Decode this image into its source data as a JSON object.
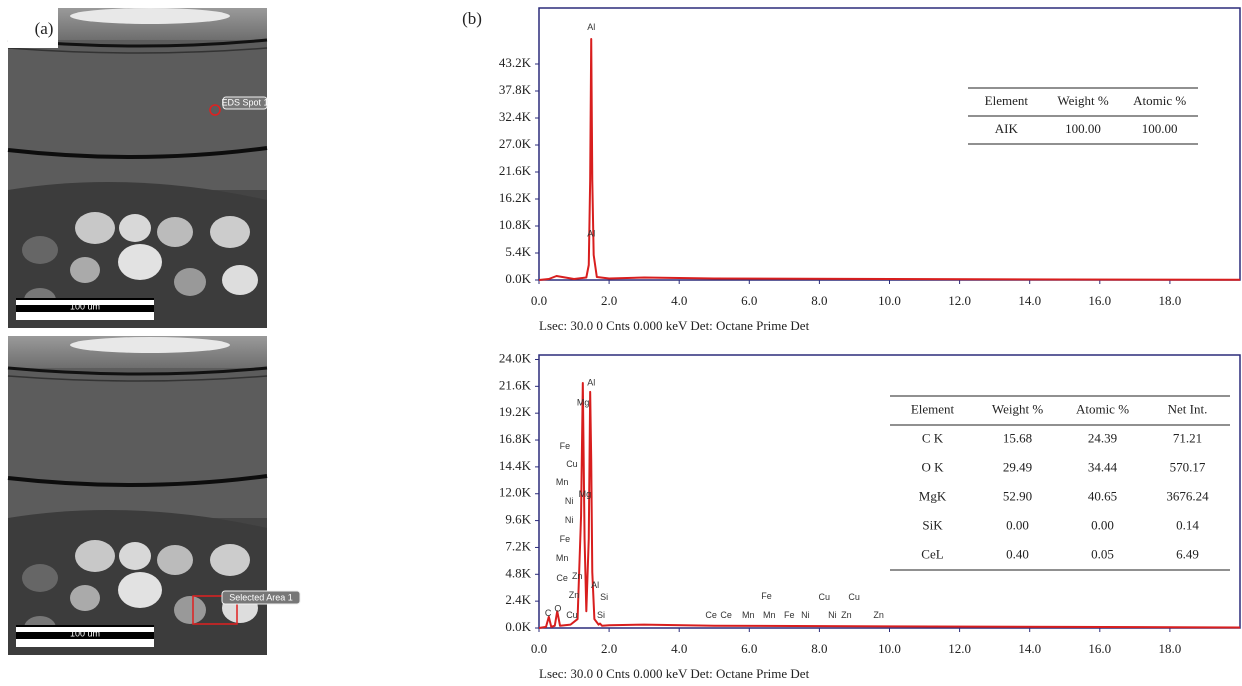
{
  "panel_labels": {
    "a": "(a)",
    "b": "(b)"
  },
  "images": [
    {
      "scale_bar": "100 um",
      "annotation": "EDS Spot 1"
    },
    {
      "scale_bar": "100 um",
      "annotation": "Selected Area 1"
    }
  ],
  "chart_data": [
    {
      "type": "line",
      "caption": "Lsec: 30.0 0 Cnts 0.000 keV Det: Octane Prime Det",
      "xlim": [
        0,
        20
      ],
      "ylim": [
        0,
        54400
      ],
      "xticks": [
        {
          "value": 0,
          "label": "0.0"
        },
        {
          "value": 2,
          "label": "2.0"
        },
        {
          "value": 4,
          "label": "4.0"
        },
        {
          "value": 6,
          "label": "6.0"
        },
        {
          "value": 8,
          "label": "8.0"
        },
        {
          "value": 10,
          "label": "10.0"
        },
        {
          "value": 12,
          "label": "12.0"
        },
        {
          "value": 14,
          "label": "14.0"
        },
        {
          "value": 16,
          "label": "16.0"
        },
        {
          "value": 18,
          "label": "18.0"
        }
      ],
      "yticks": [
        {
          "value": 0,
          "label": "0.0K"
        },
        {
          "value": 5400,
          "label": "5.4K"
        },
        {
          "value": 10800,
          "label": "10.8K"
        },
        {
          "value": 16200,
          "label": "16.2K"
        },
        {
          "value": 21600,
          "label": "21.6K"
        },
        {
          "value": 27000,
          "label": "27.0K"
        },
        {
          "value": 32400,
          "label": "32.4K"
        },
        {
          "value": 37800,
          "label": "37.8K"
        },
        {
          "value": 43200,
          "label": "43.2K"
        }
      ],
      "series": [
        {
          "color": "#d81e1e",
          "x": [
            0,
            0.28,
            0.5,
            1.0,
            1.35,
            1.42,
            1.46,
            1.49,
            1.52,
            1.56,
            1.65,
            2.0,
            3.0,
            5.0,
            10,
            15,
            20
          ],
          "values": [
            0,
            200,
            800,
            200,
            500,
            3000,
            20000,
            48200,
            20000,
            5000,
            600,
            300,
            500,
            300,
            200,
            100,
            50
          ]
        }
      ],
      "annotations": [
        {
          "text": "Al",
          "x": 1.49,
          "y": 50500
        },
        {
          "text": "Al",
          "x": 1.49,
          "y": 9200
        }
      ],
      "table": {
        "columns": [
          "Element",
          "Weight %",
          "Atomic %"
        ],
        "rows": [
          [
            "AIK",
            "100.00",
            "100.00"
          ]
        ]
      }
    },
    {
      "type": "line",
      "caption": "Lsec: 30.0 0 Cnts 0.000 keV Det: Octane Prime Det",
      "xlim": [
        0,
        20
      ],
      "ylim": [
        0,
        24400
      ],
      "xticks": [
        {
          "value": 0,
          "label": "0.0"
        },
        {
          "value": 2,
          "label": "2.0"
        },
        {
          "value": 4,
          "label": "4.0"
        },
        {
          "value": 6,
          "label": "6.0"
        },
        {
          "value": 8,
          "label": "8.0"
        },
        {
          "value": 10,
          "label": "10.0"
        },
        {
          "value": 12,
          "label": "12.0"
        },
        {
          "value": 14,
          "label": "14.0"
        },
        {
          "value": 16,
          "label": "16.0"
        },
        {
          "value": 18,
          "label": "18.0"
        }
      ],
      "yticks": [
        {
          "value": 0,
          "label": "0.0K"
        },
        {
          "value": 2400,
          "label": "2.4K"
        },
        {
          "value": 4800,
          "label": "4.8K"
        },
        {
          "value": 7200,
          "label": "7.2K"
        },
        {
          "value": 9600,
          "label": "9.6K"
        },
        {
          "value": 12000,
          "label": "12.0K"
        },
        {
          "value": 14400,
          "label": "14.4K"
        },
        {
          "value": 16800,
          "label": "16.8K"
        },
        {
          "value": 19200,
          "label": "19.2K"
        },
        {
          "value": 21600,
          "label": "21.6K"
        },
        {
          "value": 24000,
          "label": "24.0K"
        }
      ],
      "series": [
        {
          "color": "#d81e1e",
          "x": [
            0,
            0.2,
            0.28,
            0.35,
            0.45,
            0.52,
            0.6,
            0.9,
            1.1,
            1.2,
            1.25,
            1.3,
            1.35,
            1.42,
            1.46,
            1.49,
            1.52,
            1.58,
            1.7,
            1.74,
            1.8,
            2.0,
            3,
            5,
            10,
            15,
            20
          ],
          "values": [
            0,
            100,
            1000,
            100,
            200,
            1500,
            200,
            300,
            800,
            10000,
            21900,
            8000,
            1500,
            8000,
            21100,
            15000,
            5000,
            800,
            300,
            400,
            200,
            250,
            300,
            200,
            150,
            100,
            50
          ]
        }
      ],
      "annotations": [
        {
          "text": "Al",
          "x": 1.49,
          "y": 21900
        },
        {
          "text": "Mg",
          "x": 1.26,
          "y": 20100
        },
        {
          "text": "Fe",
          "x": 0.74,
          "y": 16200
        },
        {
          "text": "Cu",
          "x": 0.94,
          "y": 14600
        },
        {
          "text": "Mn",
          "x": 0.66,
          "y": 13000
        },
        {
          "text": "Ni",
          "x": 0.86,
          "y": 11300
        },
        {
          "text": "Mg",
          "x": 1.31,
          "y": 11900
        },
        {
          "text": "Ni",
          "x": 0.86,
          "y": 9600
        },
        {
          "text": "Fe",
          "x": 0.74,
          "y": 7900
        },
        {
          "text": "Mn",
          "x": 0.66,
          "y": 6200
        },
        {
          "text": "Ce",
          "x": 0.66,
          "y": 4400
        },
        {
          "text": "Zn",
          "x": 1.09,
          "y": 4600
        },
        {
          "text": "Zn",
          "x": 1.0,
          "y": 2900
        },
        {
          "text": "Al",
          "x": 1.6,
          "y": 3800
        },
        {
          "text": "Si",
          "x": 1.86,
          "y": 2700
        },
        {
          "text": "C",
          "x": 0.26,
          "y": 1300
        },
        {
          "text": "O",
          "x": 0.54,
          "y": 1700
        },
        {
          "text": "Cu",
          "x": 0.94,
          "y": 1100
        },
        {
          "text": "Si",
          "x": 1.77,
          "y": 1100
        },
        {
          "text": "Ce",
          "x": 4.91,
          "y": 1100
        },
        {
          "text": "Ce",
          "x": 5.34,
          "y": 1100
        },
        {
          "text": "Mn",
          "x": 5.97,
          "y": 1100
        },
        {
          "text": "Mn",
          "x": 6.57,
          "y": 1100
        },
        {
          "text": "Fe",
          "x": 7.14,
          "y": 1100
        },
        {
          "text": "Ni",
          "x": 7.6,
          "y": 1100
        },
        {
          "text": "Ni",
          "x": 8.37,
          "y": 1100
        },
        {
          "text": "Zn",
          "x": 8.77,
          "y": 1100
        },
        {
          "text": "Zn",
          "x": 9.69,
          "y": 1100
        },
        {
          "text": "Fe",
          "x": 6.49,
          "y": 2800
        },
        {
          "text": "Cu",
          "x": 8.14,
          "y": 2700
        },
        {
          "text": "Cu",
          "x": 8.99,
          "y": 2700
        }
      ],
      "table": {
        "columns": [
          "Element",
          "Weight %",
          "Atomic %",
          "Net Int."
        ],
        "rows": [
          [
            "C K",
            "15.68",
            "24.39",
            "71.21"
          ],
          [
            "O K",
            "29.49",
            "34.44",
            "570.17"
          ],
          [
            "MgK",
            "52.90",
            "40.65",
            "3676.24"
          ],
          [
            "SiK",
            "0.00",
            "0.00",
            "0.14"
          ],
          [
            "CeL",
            "0.40",
            "0.05",
            "6.49"
          ]
        ]
      }
    }
  ]
}
